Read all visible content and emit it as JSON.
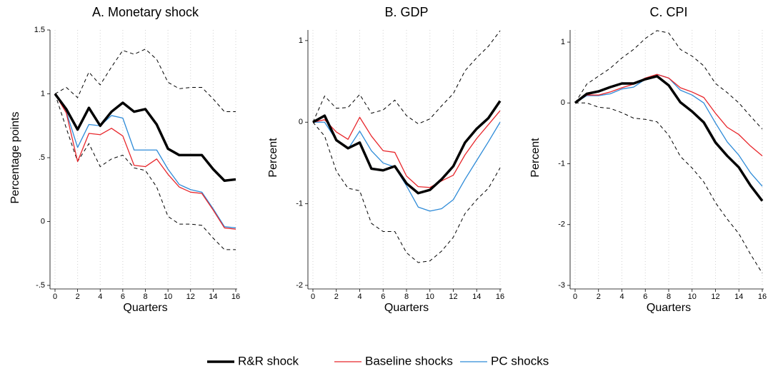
{
  "chart_data": [
    {
      "type": "line",
      "title": "A. Monetary shock",
      "y_label": "Percentage points",
      "x_label": "Quarters",
      "x": [
        0,
        1,
        2,
        3,
        4,
        5,
        6,
        7,
        8,
        9,
        10,
        11,
        12,
        13,
        14,
        15,
        16
      ],
      "xlim": [
        0,
        16
      ],
      "xticks": [
        0,
        2,
        4,
        6,
        8,
        10,
        12,
        14,
        16
      ],
      "grid": true,
      "ylim": [
        -0.5,
        1.5
      ],
      "yticks": [
        {
          "value": -0.5,
          "label": "-.5"
        },
        0,
        {
          "value": 0.5,
          "label": ".5"
        },
        1,
        1.5
      ],
      "series": [
        {
          "name": "R&R shock",
          "color": "#000000",
          "line_width": 3.5,
          "values": [
            1.0,
            0.88,
            0.72,
            0.89,
            0.75,
            0.86,
            0.93,
            0.86,
            0.88,
            0.76,
            0.57,
            0.52,
            0.52,
            0.52,
            0.41,
            0.32,
            0.33
          ]
        },
        {
          "name": "Baseline shocks",
          "color": "#e8262b",
          "line_width": 1.3,
          "values": [
            1.0,
            0.85,
            0.47,
            0.69,
            0.68,
            0.73,
            0.67,
            0.44,
            0.43,
            0.49,
            0.37,
            0.27,
            0.23,
            0.22,
            0.09,
            -0.05,
            -0.06
          ]
        },
        {
          "name": "PC shocks",
          "color": "#2e8bd8",
          "line_width": 1.3,
          "values": [
            1.0,
            0.86,
            0.58,
            0.76,
            0.75,
            0.83,
            0.81,
            0.56,
            0.56,
            0.56,
            0.41,
            0.29,
            0.25,
            0.23,
            0.1,
            -0.04,
            -0.05
          ]
        }
      ],
      "ci_color": "#000000",
      "ci_dashed": true,
      "ci_upper": [
        1.0,
        1.05,
        0.97,
        1.17,
        1.07,
        1.21,
        1.34,
        1.31,
        1.35,
        1.27,
        1.09,
        1.04,
        1.05,
        1.05,
        0.96,
        0.86,
        0.86
      ],
      "ci_lower": [
        1.0,
        0.73,
        0.47,
        0.61,
        0.43,
        0.49,
        0.52,
        0.42,
        0.4,
        0.27,
        0.04,
        -0.02,
        -0.02,
        -0.03,
        -0.13,
        -0.22,
        -0.22
      ]
    },
    {
      "type": "line",
      "title": "B. GDP",
      "y_label": "Percent",
      "x_label": "Quarters",
      "x": [
        0,
        1,
        2,
        3,
        4,
        5,
        6,
        7,
        8,
        9,
        10,
        11,
        12,
        13,
        14,
        15,
        16
      ],
      "xlim": [
        0,
        16
      ],
      "xticks": [
        0,
        2,
        4,
        6,
        8,
        10,
        12,
        14,
        16
      ],
      "grid": true,
      "ylim": [
        -2.0,
        1.13
      ],
      "yticks": [
        -2,
        -1,
        0,
        1
      ],
      "series": [
        {
          "name": "R&R shock",
          "color": "#000000",
          "line_width": 3.5,
          "values": [
            0,
            0.08,
            -0.22,
            -0.32,
            -0.25,
            -0.57,
            -0.59,
            -0.54,
            -0.75,
            -0.87,
            -0.83,
            -0.7,
            -0.54,
            -0.25,
            -0.08,
            0.05,
            0.26
          ]
        },
        {
          "name": "Baseline shocks",
          "color": "#e8262b",
          "line_width": 1.3,
          "values": [
            0,
            0.03,
            -0.12,
            -0.21,
            0.06,
            -0.17,
            -0.35,
            -0.37,
            -0.66,
            -0.79,
            -0.8,
            -0.72,
            -0.65,
            -0.4,
            -0.2,
            -0.03,
            0.14
          ]
        },
        {
          "name": "PC shocks",
          "color": "#2e8bd8",
          "line_width": 1.3,
          "values": [
            0,
            0.0,
            -0.22,
            -0.33,
            -0.11,
            -0.35,
            -0.5,
            -0.55,
            -0.78,
            -1.04,
            -1.09,
            -1.06,
            -0.95,
            -0.7,
            -0.47,
            -0.24,
            0.0
          ]
        }
      ],
      "ci_color": "#000000",
      "ci_dashed": true,
      "ci_upper": [
        0,
        0.32,
        0.17,
        0.18,
        0.34,
        0.11,
        0.15,
        0.27,
        0.08,
        -0.02,
        0.04,
        0.2,
        0.35,
        0.63,
        0.79,
        0.93,
        1.12
      ],
      "ci_lower": [
        0,
        -0.17,
        -0.6,
        -0.81,
        -0.84,
        -1.24,
        -1.34,
        -1.34,
        -1.6,
        -1.72,
        -1.7,
        -1.58,
        -1.41,
        -1.12,
        -0.95,
        -0.81,
        -0.56
      ]
    },
    {
      "type": "line",
      "title": "C. CPI",
      "y_label": "Percent",
      "x_label": "Quarters",
      "x": [
        0,
        1,
        2,
        3,
        4,
        5,
        6,
        7,
        8,
        9,
        10,
        11,
        12,
        13,
        14,
        15,
        16
      ],
      "xlim": [
        0,
        16
      ],
      "xticks": [
        0,
        2,
        4,
        6,
        8,
        10,
        12,
        14,
        16
      ],
      "grid": true,
      "ylim": [
        -3.0,
        1.2
      ],
      "yticks": [
        -3,
        -2,
        -1,
        0,
        1
      ],
      "series": [
        {
          "name": "R&R shock",
          "color": "#000000",
          "line_width": 3.5,
          "values": [
            0,
            0.15,
            0.19,
            0.26,
            0.32,
            0.32,
            0.39,
            0.44,
            0.29,
            0.01,
            -0.14,
            -0.32,
            -0.65,
            -0.87,
            -1.06,
            -1.36,
            -1.61
          ]
        },
        {
          "name": "Baseline shocks",
          "color": "#e8262b",
          "line_width": 1.3,
          "values": [
            0,
            0.13,
            0.13,
            0.18,
            0.25,
            0.31,
            0.41,
            0.47,
            0.41,
            0.25,
            0.18,
            0.09,
            -0.17,
            -0.4,
            -0.52,
            -0.71,
            -0.87
          ]
        },
        {
          "name": "PC shocks",
          "color": "#2e8bd8",
          "line_width": 1.3,
          "values": [
            0,
            0.12,
            0.12,
            0.15,
            0.23,
            0.26,
            0.39,
            0.47,
            0.41,
            0.21,
            0.13,
            0.0,
            -0.33,
            -0.64,
            -0.86,
            -1.15,
            -1.37
          ]
        }
      ],
      "ci_color": "#000000",
      "ci_dashed": true,
      "ci_upper": [
        0,
        0.31,
        0.44,
        0.57,
        0.74,
        0.88,
        1.06,
        1.19,
        1.15,
        0.88,
        0.77,
        0.61,
        0.32,
        0.17,
        0.0,
        -0.22,
        -0.43
      ],
      "ci_lower": [
        0,
        0.0,
        -0.07,
        -0.09,
        -0.16,
        -0.25,
        -0.27,
        -0.31,
        -0.53,
        -0.88,
        -1.07,
        -1.3,
        -1.64,
        -1.91,
        -2.15,
        -2.49,
        -2.8
      ]
    }
  ]
}
